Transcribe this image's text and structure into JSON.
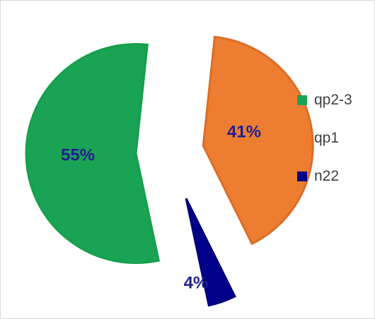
{
  "chart_data": {
    "type": "pie",
    "title": "",
    "categories": [
      "qp2-3",
      "qp1",
      "n22"
    ],
    "values": [
      55,
      41,
      4
    ],
    "labels": [
      "55%",
      "41%",
      "4%"
    ],
    "colors": [
      "#1aa354",
      "#ed7d31",
      "#00008b"
    ],
    "edge_colors": [
      "#14a04c",
      "#dd6d25",
      "#00007a"
    ],
    "label_color": "#1f1f8f",
    "legend_position": "right",
    "exploded": true
  }
}
